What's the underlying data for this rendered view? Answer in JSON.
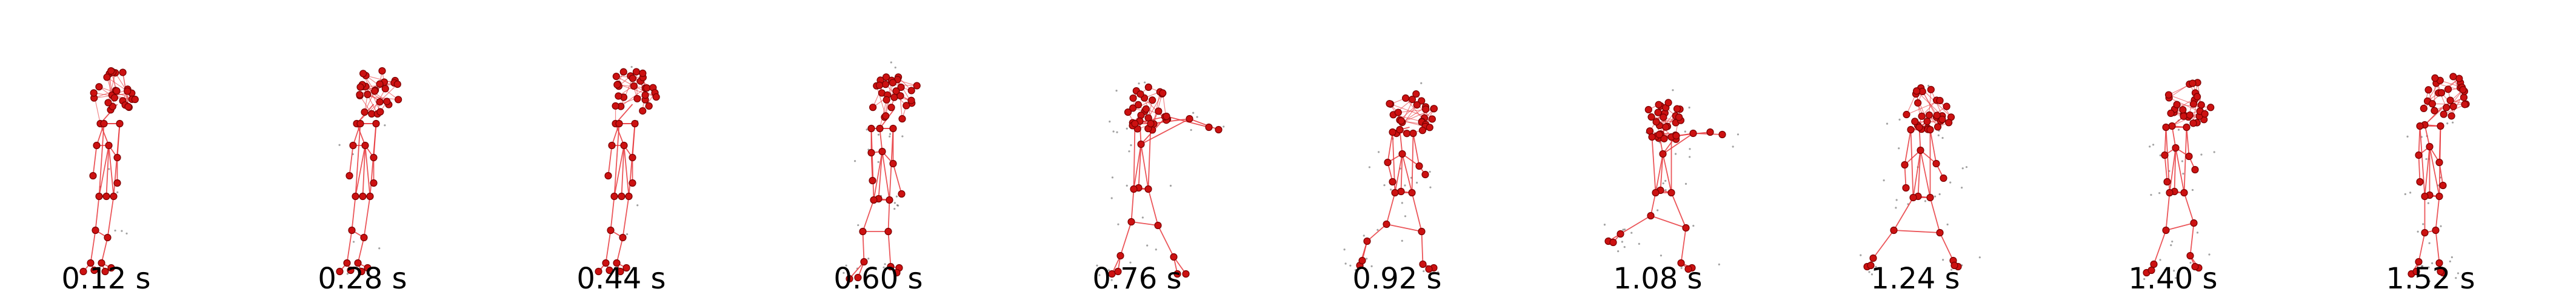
{
  "colors": {
    "skeleton_edge": "#e8383d",
    "joint_fill": "#cc1111",
    "joint_stroke": "#7a0000",
    "reference_dot": "#555555",
    "label_text": "#000000",
    "background": "#ffffff"
  },
  "frames": [
    {
      "time_label": "0.12 s",
      "pose": "standing"
    },
    {
      "time_label": "0.28 s",
      "pose": "standing"
    },
    {
      "time_label": "0.44 s",
      "pose": "standing"
    },
    {
      "time_label": "0.60 s",
      "pose": "step-start"
    },
    {
      "time_label": "0.76 s",
      "pose": "reach-forward"
    },
    {
      "time_label": "0.92 s",
      "pose": "crouch"
    },
    {
      "time_label": "1.08 s",
      "pose": "reach-low"
    },
    {
      "time_label": "1.24 s",
      "pose": "recover"
    },
    {
      "time_label": "1.40 s",
      "pose": "step-back"
    },
    {
      "time_label": "1.52 s",
      "pose": "standing-final"
    }
  ]
}
